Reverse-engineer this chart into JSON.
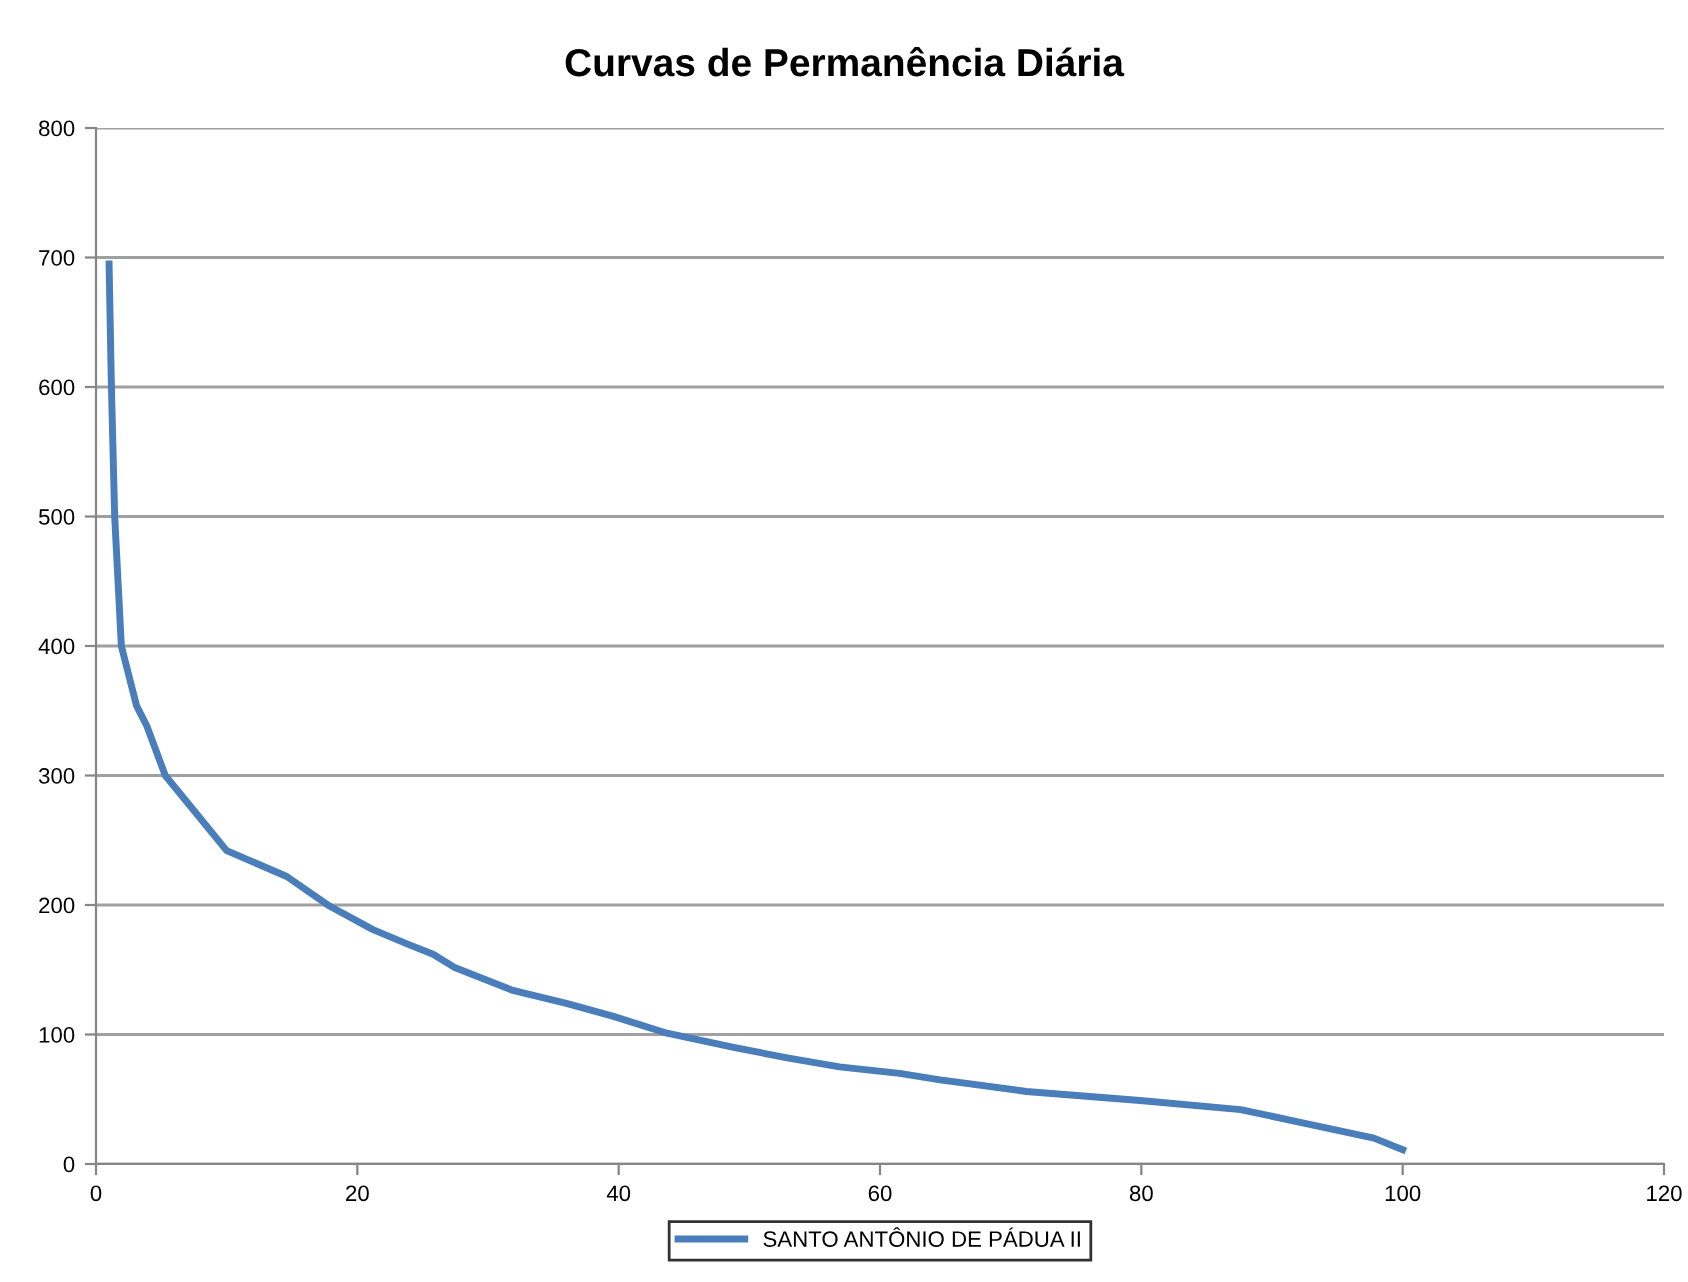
{
  "chart_data": {
    "type": "line",
    "title": "Curvas de Permanência Diária",
    "series": [
      {
        "name": "SANTO ANTÔNIO DE PÁDUA II",
        "color": "#4a7ebb",
        "x": [
          1,
          1.18,
          1.43,
          1.94,
          3.1,
          3.9,
          5.3,
          10,
          14.6,
          17.9,
          21.2,
          23.8,
          25.8,
          27.4,
          31.9,
          36,
          39.6,
          43.7,
          48.8,
          52.9,
          56.9,
          61.5,
          64.6,
          71.2,
          79.9,
          87.6,
          92.7,
          97.8,
          100
        ],
        "values": [
          695,
          600,
          500,
          400,
          354,
          338,
          300,
          242,
          222,
          199,
          181,
          170,
          162,
          152,
          134,
          124,
          114,
          101,
          90,
          82,
          75,
          70,
          65,
          56,
          49,
          42,
          31,
          20,
          11
        ]
      }
    ],
    "xlim": [
      0,
      120
    ],
    "xticks": [
      0,
      20,
      40,
      60,
      80,
      100,
      120
    ],
    "ylim": [
      0,
      800
    ],
    "yticks": [
      0,
      100,
      200,
      300,
      400,
      500,
      600,
      700,
      800
    ],
    "grid": "y",
    "legend": "bottom",
    "marker": "none",
    "line_style": "solid"
  }
}
